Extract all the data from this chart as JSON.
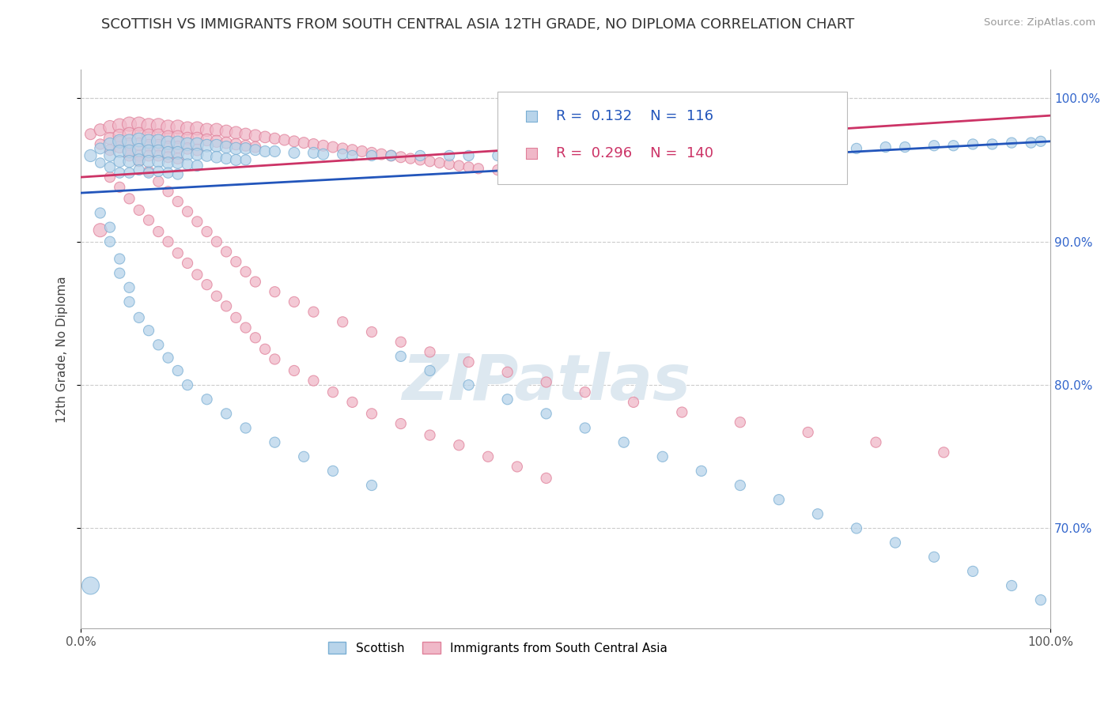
{
  "title": "SCOTTISH VS IMMIGRANTS FROM SOUTH CENTRAL ASIA 12TH GRADE, NO DIPLOMA CORRELATION CHART",
  "source_text": "Source: ZipAtlas.com",
  "ylabel": "12th Grade, No Diploma",
  "xlim": [
    0.0,
    1.0
  ],
  "ylim": [
    0.63,
    1.02
  ],
  "yticks_right": [
    0.7,
    0.8,
    0.9,
    1.0
  ],
  "ytick_labels_right": [
    "70.0%",
    "80.0%",
    "90.0%",
    "100.0%"
  ],
  "series": [
    {
      "name": "Scottish",
      "color": "#7aafd4",
      "fill_color": "#b8d4ea",
      "R": 0.132,
      "N": 116,
      "trend_color": "#2255bb"
    },
    {
      "name": "Immigrants from South Central Asia",
      "color": "#e0809a",
      "fill_color": "#f0b8c8",
      "R": 0.296,
      "N": 140,
      "trend_color": "#cc3366"
    }
  ],
  "watermark": "ZIPatlas",
  "watermark_color": "#dde8f0",
  "background_color": "#ffffff",
  "grid_color": "#cccccc",
  "title_fontsize": 13,
  "legend_fontsize": 13,
  "scottish_x": [
    0.01,
    0.02,
    0.02,
    0.03,
    0.03,
    0.03,
    0.04,
    0.04,
    0.04,
    0.04,
    0.05,
    0.05,
    0.05,
    0.05,
    0.06,
    0.06,
    0.06,
    0.06,
    0.07,
    0.07,
    0.07,
    0.07,
    0.08,
    0.08,
    0.08,
    0.08,
    0.09,
    0.09,
    0.09,
    0.09,
    0.1,
    0.1,
    0.1,
    0.1,
    0.11,
    0.11,
    0.11,
    0.12,
    0.12,
    0.12,
    0.13,
    0.13,
    0.14,
    0.14,
    0.15,
    0.15,
    0.16,
    0.16,
    0.17,
    0.17,
    0.18,
    0.19,
    0.2,
    0.22,
    0.24,
    0.25,
    0.27,
    0.28,
    0.3,
    0.32,
    0.35,
    0.38,
    0.4,
    0.43,
    0.46,
    0.5,
    0.53,
    0.57,
    0.6,
    0.64,
    0.67,
    0.7,
    0.73,
    0.75,
    0.78,
    0.8,
    0.83,
    0.85,
    0.88,
    0.9,
    0.92,
    0.94,
    0.96,
    0.98,
    0.99,
    0.02,
    0.03,
    0.03,
    0.04,
    0.04,
    0.05,
    0.05,
    0.06,
    0.07,
    0.08,
    0.09,
    0.1,
    0.11,
    0.13,
    0.15,
    0.17,
    0.2,
    0.23,
    0.26,
    0.3,
    0.33,
    0.36,
    0.4,
    0.44,
    0.48,
    0.52,
    0.56,
    0.6,
    0.64,
    0.68,
    0.72,
    0.76,
    0.8,
    0.84,
    0.88,
    0.92,
    0.96,
    0.99,
    0.01
  ],
  "scottish_y": [
    0.96,
    0.965,
    0.955,
    0.968,
    0.96,
    0.952,
    0.97,
    0.963,
    0.956,
    0.948,
    0.97,
    0.963,
    0.956,
    0.948,
    0.971,
    0.964,
    0.957,
    0.95,
    0.97,
    0.963,
    0.956,
    0.948,
    0.97,
    0.963,
    0.956,
    0.949,
    0.969,
    0.962,
    0.955,
    0.948,
    0.969,
    0.962,
    0.955,
    0.947,
    0.968,
    0.961,
    0.954,
    0.968,
    0.961,
    0.953,
    0.967,
    0.96,
    0.967,
    0.959,
    0.966,
    0.958,
    0.965,
    0.957,
    0.965,
    0.957,
    0.964,
    0.963,
    0.963,
    0.962,
    0.962,
    0.961,
    0.961,
    0.96,
    0.96,
    0.96,
    0.96,
    0.96,
    0.96,
    0.96,
    0.96,
    0.96,
    0.961,
    0.961,
    0.962,
    0.962,
    0.963,
    0.963,
    0.964,
    0.964,
    0.965,
    0.965,
    0.966,
    0.966,
    0.967,
    0.967,
    0.968,
    0.968,
    0.969,
    0.969,
    0.97,
    0.92,
    0.91,
    0.9,
    0.888,
    0.878,
    0.868,
    0.858,
    0.847,
    0.838,
    0.828,
    0.819,
    0.81,
    0.8,
    0.79,
    0.78,
    0.77,
    0.76,
    0.75,
    0.74,
    0.73,
    0.82,
    0.81,
    0.8,
    0.79,
    0.78,
    0.77,
    0.76,
    0.75,
    0.74,
    0.73,
    0.72,
    0.71,
    0.7,
    0.69,
    0.68,
    0.67,
    0.66,
    0.65,
    0.66
  ],
  "scottish_sizes": [
    120,
    100,
    80,
    130,
    110,
    90,
    150,
    130,
    110,
    90,
    160,
    140,
    120,
    90,
    160,
    140,
    120,
    90,
    160,
    140,
    120,
    90,
    160,
    140,
    120,
    90,
    150,
    130,
    110,
    90,
    150,
    130,
    110,
    90,
    140,
    120,
    100,
    140,
    120,
    100,
    130,
    110,
    130,
    110,
    120,
    100,
    120,
    100,
    110,
    90,
    100,
    100,
    100,
    100,
    100,
    100,
    90,
    90,
    90,
    90,
    90,
    90,
    90,
    90,
    90,
    90,
    90,
    90,
    90,
    90,
    90,
    90,
    90,
    90,
    90,
    90,
    90,
    90,
    90,
    90,
    90,
    90,
    90,
    90,
    90,
    90,
    90,
    90,
    90,
    90,
    90,
    90,
    90,
    90,
    90,
    90,
    90,
    90,
    90,
    90,
    90,
    90,
    90,
    90,
    90,
    90,
    90,
    90,
    90,
    90,
    90,
    90,
    90,
    90,
    90,
    90,
    90,
    90,
    90,
    90,
    90,
    90,
    90,
    250
  ],
  "immigrants_x": [
    0.01,
    0.02,
    0.02,
    0.03,
    0.03,
    0.03,
    0.04,
    0.04,
    0.04,
    0.05,
    0.05,
    0.05,
    0.05,
    0.06,
    0.06,
    0.06,
    0.06,
    0.07,
    0.07,
    0.07,
    0.07,
    0.08,
    0.08,
    0.08,
    0.08,
    0.09,
    0.09,
    0.09,
    0.09,
    0.1,
    0.1,
    0.1,
    0.1,
    0.11,
    0.11,
    0.11,
    0.12,
    0.12,
    0.12,
    0.13,
    0.13,
    0.14,
    0.14,
    0.15,
    0.15,
    0.16,
    0.16,
    0.17,
    0.17,
    0.18,
    0.18,
    0.19,
    0.2,
    0.21,
    0.22,
    0.23,
    0.24,
    0.25,
    0.26,
    0.27,
    0.28,
    0.29,
    0.3,
    0.31,
    0.32,
    0.33,
    0.34,
    0.35,
    0.36,
    0.37,
    0.38,
    0.39,
    0.4,
    0.41,
    0.43,
    0.45,
    0.47,
    0.49,
    0.51,
    0.03,
    0.04,
    0.05,
    0.06,
    0.07,
    0.08,
    0.09,
    0.1,
    0.11,
    0.12,
    0.13,
    0.14,
    0.15,
    0.16,
    0.17,
    0.18,
    0.19,
    0.2,
    0.22,
    0.24,
    0.26,
    0.28,
    0.3,
    0.33,
    0.36,
    0.39,
    0.42,
    0.45,
    0.48,
    0.04,
    0.05,
    0.06,
    0.07,
    0.08,
    0.09,
    0.1,
    0.11,
    0.12,
    0.13,
    0.14,
    0.15,
    0.16,
    0.17,
    0.18,
    0.2,
    0.22,
    0.24,
    0.27,
    0.3,
    0.33,
    0.36,
    0.4,
    0.44,
    0.48,
    0.52,
    0.57,
    0.62,
    0.68,
    0.75,
    0.82,
    0.89,
    0.02
  ],
  "immigrants_y": [
    0.975,
    0.978,
    0.968,
    0.98,
    0.972,
    0.964,
    0.981,
    0.974,
    0.966,
    0.982,
    0.975,
    0.968,
    0.96,
    0.982,
    0.975,
    0.968,
    0.96,
    0.981,
    0.974,
    0.967,
    0.96,
    0.981,
    0.974,
    0.967,
    0.96,
    0.98,
    0.973,
    0.966,
    0.959,
    0.98,
    0.973,
    0.966,
    0.958,
    0.979,
    0.972,
    0.965,
    0.979,
    0.972,
    0.964,
    0.978,
    0.971,
    0.978,
    0.97,
    0.977,
    0.969,
    0.976,
    0.968,
    0.975,
    0.967,
    0.974,
    0.966,
    0.973,
    0.972,
    0.971,
    0.97,
    0.969,
    0.968,
    0.967,
    0.966,
    0.965,
    0.964,
    0.963,
    0.962,
    0.961,
    0.96,
    0.959,
    0.958,
    0.957,
    0.956,
    0.955,
    0.954,
    0.953,
    0.952,
    0.951,
    0.95,
    0.949,
    0.948,
    0.947,
    0.946,
    0.945,
    0.938,
    0.93,
    0.922,
    0.915,
    0.907,
    0.9,
    0.892,
    0.885,
    0.877,
    0.87,
    0.862,
    0.855,
    0.847,
    0.84,
    0.833,
    0.825,
    0.818,
    0.81,
    0.803,
    0.795,
    0.788,
    0.78,
    0.773,
    0.765,
    0.758,
    0.75,
    0.743,
    0.735,
    0.97,
    0.963,
    0.956,
    0.949,
    0.942,
    0.935,
    0.928,
    0.921,
    0.914,
    0.907,
    0.9,
    0.893,
    0.886,
    0.879,
    0.872,
    0.865,
    0.858,
    0.851,
    0.844,
    0.837,
    0.83,
    0.823,
    0.816,
    0.809,
    0.802,
    0.795,
    0.788,
    0.781,
    0.774,
    0.767,
    0.76,
    0.753,
    0.908
  ],
  "immigrants_sizes": [
    100,
    120,
    90,
    140,
    120,
    100,
    160,
    140,
    120,
    170,
    150,
    130,
    100,
    170,
    150,
    130,
    100,
    170,
    150,
    130,
    100,
    170,
    150,
    130,
    100,
    160,
    140,
    120,
    100,
    160,
    140,
    120,
    100,
    150,
    130,
    110,
    150,
    130,
    110,
    140,
    120,
    140,
    120,
    130,
    110,
    130,
    110,
    120,
    100,
    120,
    100,
    110,
    100,
    100,
    100,
    100,
    100,
    100,
    100,
    100,
    100,
    100,
    100,
    100,
    100,
    100,
    90,
    90,
    90,
    90,
    90,
    90,
    90,
    90,
    90,
    90,
    90,
    90,
    90,
    90,
    90,
    90,
    90,
    90,
    90,
    90,
    90,
    90,
    90,
    90,
    90,
    90,
    90,
    90,
    90,
    90,
    90,
    90,
    90,
    90,
    90,
    90,
    90,
    90,
    90,
    90,
    90,
    90,
    90,
    90,
    90,
    90,
    90,
    90,
    90,
    90,
    90,
    90,
    90,
    90,
    90,
    90,
    90,
    90,
    90,
    90,
    90,
    90,
    90,
    90,
    90,
    90,
    90,
    90,
    90,
    90,
    90,
    90,
    90,
    90,
    150
  ]
}
